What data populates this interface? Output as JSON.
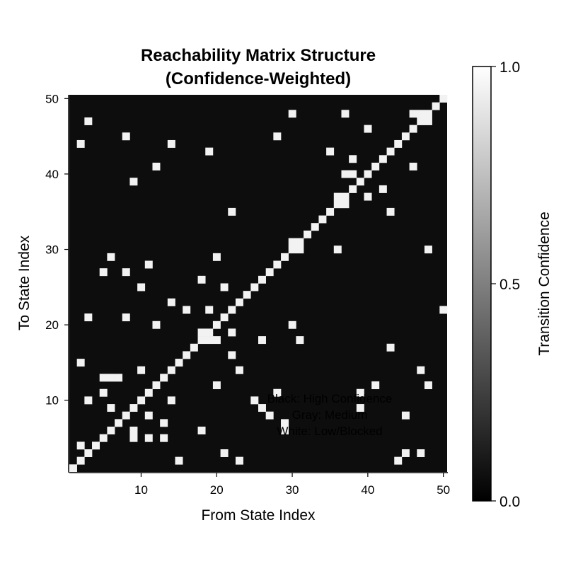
{
  "chart_data": {
    "type": "heatmap",
    "title_lines": [
      "Reachability Matrix Structure",
      "(Confidence-Weighted)"
    ],
    "xlabel": "From State Index",
    "ylabel": "To State Index",
    "xlim": [
      1,
      50
    ],
    "ylim": [
      1,
      50
    ],
    "x_ticks": [
      10,
      20,
      30,
      40,
      50
    ],
    "y_ticks": [
      10,
      20,
      30,
      40,
      50
    ],
    "colorbar": {
      "label": "Transition Confidence",
      "ticks": [
        0.0,
        0.5,
        1.0
      ],
      "tick_labels": [
        "0.0",
        "0.5",
        "1.0"
      ],
      "range": [
        0,
        1
      ],
      "colormap": [
        "#000000",
        "#ffffff"
      ]
    },
    "background_value": 0.05,
    "annotation_lines": [
      "Black: High Confidence",
      "Gray: Medium",
      "White: Low/Blocked"
    ],
    "cells_note": "cells listed as [from_state, to_state, confidence]; all other cells have background_value",
    "cells": [
      [
        1,
        1,
        0.95
      ],
      [
        2,
        2,
        0.95
      ],
      [
        3,
        3,
        0.95
      ],
      [
        4,
        4,
        0.95
      ],
      [
        5,
        5,
        0.95
      ],
      [
        6,
        6,
        0.95
      ],
      [
        7,
        7,
        0.95
      ],
      [
        8,
        8,
        0.95
      ],
      [
        9,
        9,
        0.95
      ],
      [
        10,
        10,
        0.95
      ],
      [
        11,
        11,
        0.95
      ],
      [
        12,
        12,
        0.95
      ],
      [
        13,
        13,
        0.95
      ],
      [
        14,
        14,
        0.95
      ],
      [
        15,
        15,
        0.95
      ],
      [
        16,
        16,
        0.95
      ],
      [
        17,
        17,
        0.95
      ],
      [
        18,
        18,
        0.95
      ],
      [
        19,
        19,
        0.95
      ],
      [
        20,
        20,
        0.95
      ],
      [
        21,
        21,
        0.95
      ],
      [
        22,
        22,
        0.95
      ],
      [
        23,
        23,
        0.95
      ],
      [
        24,
        24,
        0.95
      ],
      [
        25,
        25,
        0.95
      ],
      [
        26,
        26,
        0.95
      ],
      [
        27,
        27,
        0.95
      ],
      [
        28,
        28,
        0.95
      ],
      [
        29,
        29,
        0.95
      ],
      [
        30,
        30,
        0.95
      ],
      [
        31,
        31,
        0.95
      ],
      [
        32,
        32,
        0.95
      ],
      [
        33,
        33,
        0.95
      ],
      [
        34,
        34,
        0.95
      ],
      [
        35,
        35,
        0.95
      ],
      [
        36,
        36,
        0.95
      ],
      [
        37,
        37,
        0.95
      ],
      [
        38,
        38,
        0.95
      ],
      [
        39,
        39,
        0.95
      ],
      [
        40,
        40,
        0.95
      ],
      [
        41,
        41,
        0.95
      ],
      [
        42,
        42,
        0.95
      ],
      [
        43,
        43,
        0.95
      ],
      [
        44,
        44,
        0.95
      ],
      [
        45,
        45,
        0.95
      ],
      [
        46,
        46,
        0.95
      ],
      [
        47,
        47,
        0.95
      ],
      [
        48,
        48,
        0.95
      ],
      [
        49,
        49,
        0.95
      ],
      [
        50,
        50,
        0.95
      ],
      [
        30,
        31,
        0.95
      ],
      [
        31,
        30,
        0.95
      ],
      [
        36,
        37,
        0.95
      ],
      [
        37,
        36,
        0.95
      ],
      [
        18,
        19,
        0.95
      ],
      [
        19,
        18,
        0.95
      ],
      [
        47,
        48,
        0.95
      ],
      [
        48,
        47,
        0.95
      ],
      [
        2,
        44,
        0.95
      ],
      [
        2,
        15,
        0.95
      ],
      [
        2,
        4,
        0.95
      ],
      [
        3,
        47,
        0.95
      ],
      [
        3,
        21,
        0.95
      ],
      [
        3,
        10,
        0.95
      ],
      [
        5,
        27,
        0.95
      ],
      [
        5,
        13,
        0.95
      ],
      [
        5,
        11,
        0.95
      ],
      [
        6,
        29,
        0.95
      ],
      [
        6,
        13,
        0.95
      ],
      [
        6,
        9,
        0.95
      ],
      [
        7,
        13,
        0.95
      ],
      [
        8,
        45,
        0.95
      ],
      [
        8,
        27,
        0.95
      ],
      [
        8,
        21,
        0.95
      ],
      [
        9,
        39,
        0.95
      ],
      [
        9,
        6,
        0.95
      ],
      [
        9,
        5,
        0.95
      ],
      [
        10,
        25,
        0.95
      ],
      [
        10,
        14,
        0.95
      ],
      [
        11,
        28,
        0.95
      ],
      [
        11,
        8,
        0.95
      ],
      [
        11,
        5,
        0.95
      ],
      [
        12,
        41,
        0.95
      ],
      [
        12,
        20,
        0.95
      ],
      [
        13,
        7,
        0.95
      ],
      [
        13,
        5,
        0.95
      ],
      [
        14,
        44,
        0.95
      ],
      [
        14,
        23,
        0.95
      ],
      [
        14,
        10,
        0.95
      ],
      [
        15,
        2,
        0.95
      ],
      [
        16,
        22,
        0.95
      ],
      [
        18,
        26,
        0.95
      ],
      [
        18,
        6,
        0.95
      ],
      [
        19,
        43,
        0.95
      ],
      [
        19,
        22,
        0.95
      ],
      [
        20,
        29,
        0.95
      ],
      [
        20,
        18,
        0.95
      ],
      [
        20,
        12,
        0.95
      ],
      [
        21,
        25,
        0.95
      ],
      [
        21,
        3,
        0.95
      ],
      [
        22,
        35,
        0.95
      ],
      [
        22,
        19,
        0.95
      ],
      [
        22,
        16,
        0.95
      ],
      [
        23,
        14,
        0.95
      ],
      [
        23,
        2,
        0.95
      ],
      [
        25,
        10,
        0.95
      ],
      [
        26,
        18,
        0.95
      ],
      [
        26,
        9,
        0.95
      ],
      [
        27,
        8,
        0.95
      ],
      [
        28,
        45,
        0.95
      ],
      [
        28,
        11,
        0.95
      ],
      [
        29,
        7,
        0.95
      ],
      [
        29,
        6,
        0.95
      ],
      [
        30,
        48,
        0.95
      ],
      [
        30,
        20,
        0.95
      ],
      [
        31,
        18,
        0.95
      ],
      [
        35,
        43,
        0.95
      ],
      [
        36,
        30,
        0.95
      ],
      [
        37,
        48,
        0.95
      ],
      [
        37,
        40,
        0.95
      ],
      [
        38,
        42,
        0.95
      ],
      [
        38,
        40,
        0.95
      ],
      [
        39,
        11,
        0.95
      ],
      [
        39,
        9,
        0.95
      ],
      [
        40,
        46,
        0.95
      ],
      [
        40,
        37,
        0.95
      ],
      [
        41,
        12,
        0.95
      ],
      [
        42,
        38,
        0.95
      ],
      [
        43,
        35,
        0.95
      ],
      [
        43,
        17,
        0.95
      ],
      [
        44,
        2,
        0.95
      ],
      [
        45,
        8,
        0.95
      ],
      [
        45,
        3,
        0.95
      ],
      [
        46,
        48,
        0.95
      ],
      [
        46,
        41,
        0.95
      ],
      [
        47,
        14,
        0.95
      ],
      [
        47,
        3,
        0.95
      ],
      [
        48,
        30,
        0.95
      ],
      [
        48,
        12,
        0.95
      ],
      [
        50,
        22,
        0.95
      ]
    ]
  }
}
